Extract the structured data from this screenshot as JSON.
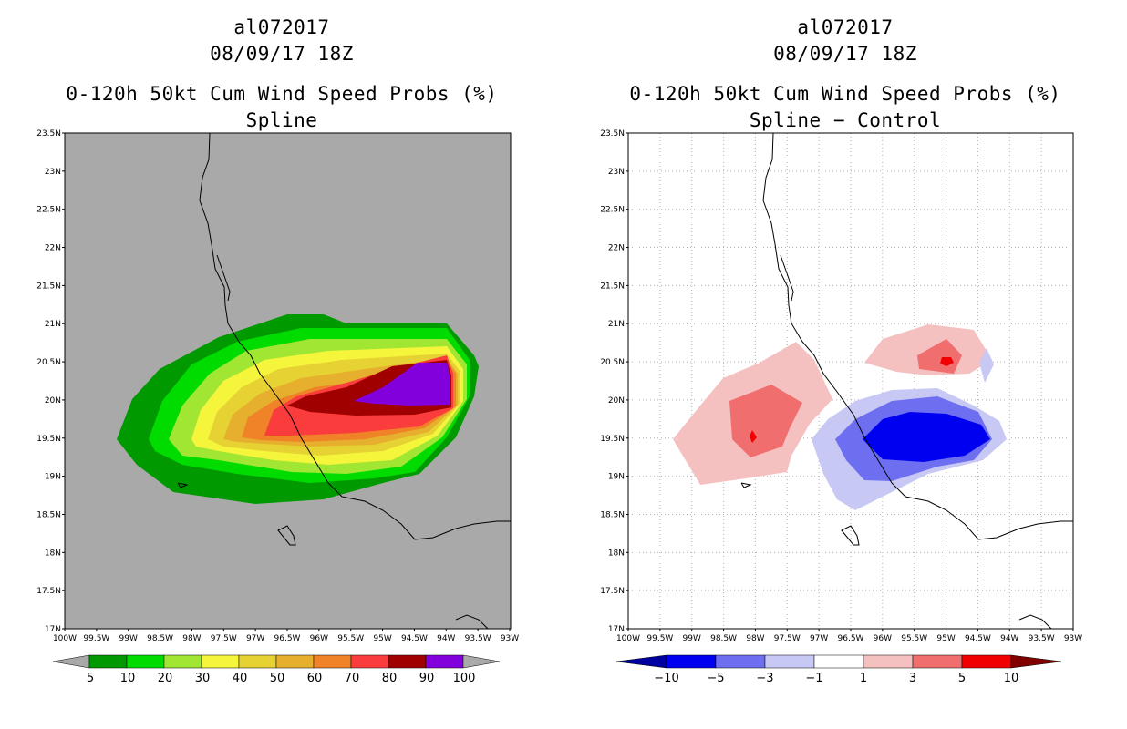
{
  "chart_data": [
    {
      "type": "contour-map",
      "storm_id": "al072017",
      "datetime": "08/09/17 18Z",
      "title": "0-120h 50kt Cum Wind Speed Probs (%)",
      "subtitle": "Spline",
      "background": "#a9a9a9",
      "lat_ticks": [
        "17N",
        "17.5N",
        "18N",
        "18.5N",
        "19N",
        "19.5N",
        "20N",
        "20.5N",
        "21N",
        "21.5N",
        "22N",
        "22.5N",
        "23N",
        "23.5N"
      ],
      "lon_ticks": [
        "100W",
        "99.5W",
        "99W",
        "98.5W",
        "98W",
        "97.5W",
        "97W",
        "96.5W",
        "96W",
        "95.5W",
        "95W",
        "94.5W",
        "94W",
        "93.5W",
        "93W"
      ],
      "lat_range": [
        17,
        23.5
      ],
      "lon_range": [
        -100,
        -93
      ],
      "grid": false,
      "legend": {
        "labels": [
          "5",
          "10",
          "20",
          "30",
          "40",
          "50",
          "60",
          "70",
          "80",
          "90",
          "100"
        ],
        "colors": [
          "#009a00",
          "#00dc00",
          "#a0e632",
          "#f5f53c",
          "#e6d232",
          "#e6af2d",
          "#f08228",
          "#fa3c3c",
          "#a00000",
          "#8200dc"
        ]
      }
    },
    {
      "type": "contour-map",
      "storm_id": "al072017",
      "datetime": "08/09/17 18Z",
      "title": "0-120h 50kt Cum Wind Speed Probs (%)",
      "subtitle": "Spline − Control",
      "background": "#ffffff",
      "lat_ticks": [
        "17N",
        "17.5N",
        "18N",
        "18.5N",
        "19N",
        "19.5N",
        "20N",
        "20.5N",
        "21N",
        "21.5N",
        "22N",
        "22.5N",
        "23N",
        "23.5N"
      ],
      "lon_ticks": [
        "100W",
        "99.5W",
        "99W",
        "98.5W",
        "98W",
        "97.5W",
        "97W",
        "96.5W",
        "96W",
        "95.5W",
        "95W",
        "94.5W",
        "94W",
        "93.5W",
        "93W"
      ],
      "lat_range": [
        17,
        23.5
      ],
      "lon_range": [
        -100,
        -93
      ],
      "grid": true,
      "legend": {
        "labels": [
          "−10",
          "−5",
          "−3",
          "−1",
          "1",
          "3",
          "5",
          "10"
        ],
        "colors": [
          "#0000a0",
          "#0000f0",
          "#6e6ef0",
          "#c8c8f5",
          "#ffffff",
          "#f5c0c0",
          "#f06e6e",
          "#f00000",
          "#800000"
        ]
      }
    }
  ]
}
